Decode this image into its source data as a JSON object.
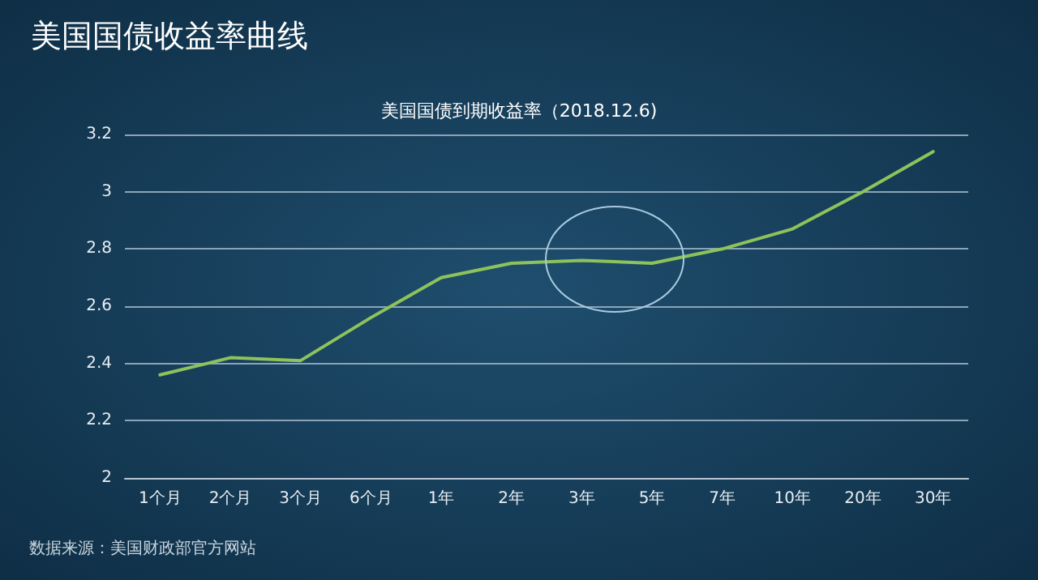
{
  "chart_data": {
    "type": "line",
    "title": "美国国债收益率曲线",
    "subtitle": "美国国债到期收益率（2018.12.6)",
    "categories": [
      "1个月",
      "2个月",
      "3个月",
      "6个月",
      "1年",
      "2年",
      "3年",
      "5年",
      "7年",
      "10年",
      "20年",
      "30年"
    ],
    "series": [
      {
        "color": "#8dc35a",
        "values": [
          2.36,
          2.42,
          2.41,
          2.56,
          2.7,
          2.75,
          2.76,
          2.75,
          2.8,
          2.87,
          3.0,
          3.14
        ]
      }
    ],
    "ylim": [
      2,
      3.2
    ],
    "yticks": [
      2,
      2.2,
      2.4,
      2.6,
      2.8,
      3,
      3.2
    ],
    "grid": "y",
    "marker": "none",
    "line_style": "solid",
    "annotations": [
      "数据来源：美国财政部官方网站"
    ]
  }
}
